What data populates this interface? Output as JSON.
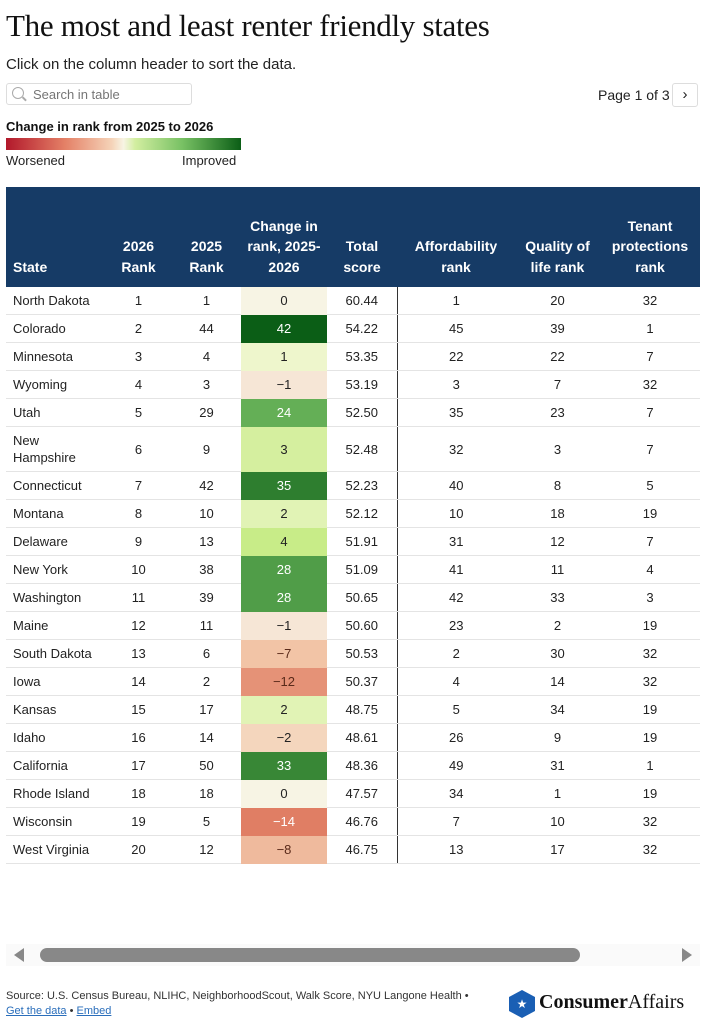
{
  "title": "The most and least renter friendly states",
  "subtitle": "Click on the column header to sort the data.",
  "search": {
    "placeholder": "Search in table"
  },
  "pagination": {
    "label": "Page 1 of 3",
    "next_icon": "chevron-right-icon"
  },
  "legend": {
    "title": "Change in rank from 2025 to 2026",
    "low": "Worsened",
    "high": "Improved",
    "colors": {
      "worst": "#b2182b",
      "neutral": "#f7f4e4",
      "best": "#0b5e16"
    }
  },
  "table": {
    "headers": [
      "State",
      "2026 Rank",
      "2025 Rank",
      "Change in rank, 2025-2026",
      "Total score",
      "Affordability rank",
      "Quality of life rank",
      "Tenant protections rank"
    ],
    "header_color": "#163b66",
    "rows": [
      [
        "North Dakota",
        "1",
        "1",
        "0",
        "60.44",
        "1",
        "20",
        "32"
      ],
      [
        "Colorado",
        "2",
        "44",
        "42",
        "54.22",
        "45",
        "39",
        "1"
      ],
      [
        "Minnesota",
        "3",
        "4",
        "1",
        "53.35",
        "22",
        "22",
        "7"
      ],
      [
        "Wyoming",
        "4",
        "3",
        "−1",
        "53.19",
        "3",
        "7",
        "32"
      ],
      [
        "Utah",
        "5",
        "29",
        "24",
        "52.50",
        "35",
        "23",
        "7"
      ],
      [
        "New Hampshire",
        "6",
        "9",
        "3",
        "52.48",
        "32",
        "3",
        "7"
      ],
      [
        "Connecticut",
        "7",
        "42",
        "35",
        "52.23",
        "40",
        "8",
        "5"
      ],
      [
        "Montana",
        "8",
        "10",
        "2",
        "52.12",
        "10",
        "18",
        "19"
      ],
      [
        "Delaware",
        "9",
        "13",
        "4",
        "51.91",
        "31",
        "12",
        "7"
      ],
      [
        "New York",
        "10",
        "38",
        "28",
        "51.09",
        "41",
        "11",
        "4"
      ],
      [
        "Washington",
        "11",
        "39",
        "28",
        "50.65",
        "42",
        "33",
        "3"
      ],
      [
        "Maine",
        "12",
        "11",
        "−1",
        "50.60",
        "23",
        "2",
        "19"
      ],
      [
        "South Dakota",
        "13",
        "6",
        "−7",
        "50.53",
        "2",
        "30",
        "32"
      ],
      [
        "Iowa",
        "14",
        "2",
        "−12",
        "50.37",
        "4",
        "14",
        "32"
      ],
      [
        "Kansas",
        "15",
        "17",
        "2",
        "48.75",
        "5",
        "34",
        "19"
      ],
      [
        "Idaho",
        "16",
        "14",
        "−2",
        "48.61",
        "26",
        "9",
        "19"
      ],
      [
        "California",
        "17",
        "50",
        "33",
        "48.36",
        "49",
        "31",
        "1"
      ],
      [
        "Rhode Island",
        "18",
        "18",
        "0",
        "47.57",
        "34",
        "1",
        "19"
      ],
      [
        "Wisconsin",
        "19",
        "5",
        "−14",
        "46.76",
        "7",
        "10",
        "32"
      ],
      [
        "West Virginia",
        "20",
        "12",
        "−8",
        "46.75",
        "13",
        "17",
        "32"
      ]
    ]
  },
  "footer": {
    "source": "Source: U.S. Census Bureau, NLIHC, NeighborhoodScout, Walk Score, NYU Langone Health •",
    "get_data": "Get the data",
    "sep": "•",
    "embed": "Embed",
    "logo": "ConsumerAffairs"
  }
}
